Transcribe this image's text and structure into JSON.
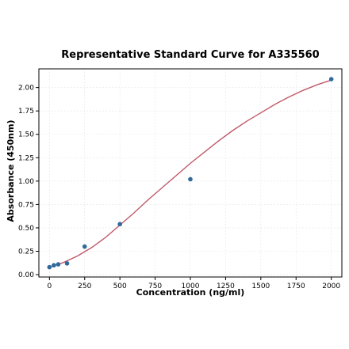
{
  "chart_data": {
    "type": "scatter",
    "title": "Representative Standard Curve for A335560",
    "xlabel": "Concentration (ng/ml)",
    "ylabel": "Absorbance (450nm)",
    "xlim": [
      -75,
      2075
    ],
    "ylim": [
      -0.025,
      2.2
    ],
    "x_ticks": [
      0,
      250,
      500,
      750,
      1000,
      1250,
      1500,
      1750,
      2000
    ],
    "y_ticks": [
      0.0,
      0.25,
      0.5,
      0.75,
      1.0,
      1.25,
      1.5,
      1.75,
      2.0
    ],
    "x_tick_labels": [
      "0",
      "250",
      "500",
      "750",
      "1000",
      "1250",
      "1500",
      "1750",
      "2000"
    ],
    "y_tick_labels": [
      "0.00",
      "0.25",
      "0.50",
      "0.75",
      "1.00",
      "1.25",
      "1.50",
      "1.75",
      "2.00"
    ],
    "grid": true,
    "series": [
      {
        "kind": "points",
        "color": "#2f6a9c",
        "x": [
          0,
          31.25,
          62.5,
          125,
          250,
          500,
          1000,
          2000
        ],
        "y": [
          0.08,
          0.1,
          0.11,
          0.12,
          0.3,
          0.54,
          1.02,
          2.09
        ]
      },
      {
        "kind": "fit-curve",
        "color": "#c0596a",
        "x": [
          0,
          100,
          200,
          300,
          400,
          500,
          600,
          700,
          800,
          900,
          1000,
          1100,
          1200,
          1300,
          1400,
          1500,
          1600,
          1700,
          1800,
          1900,
          2000
        ],
        "y": [
          0.08,
          0.13,
          0.2,
          0.29,
          0.4,
          0.53,
          0.66,
          0.8,
          0.93,
          1.06,
          1.19,
          1.31,
          1.43,
          1.54,
          1.64,
          1.73,
          1.82,
          1.9,
          1.97,
          2.03,
          2.08
        ]
      }
    ]
  }
}
